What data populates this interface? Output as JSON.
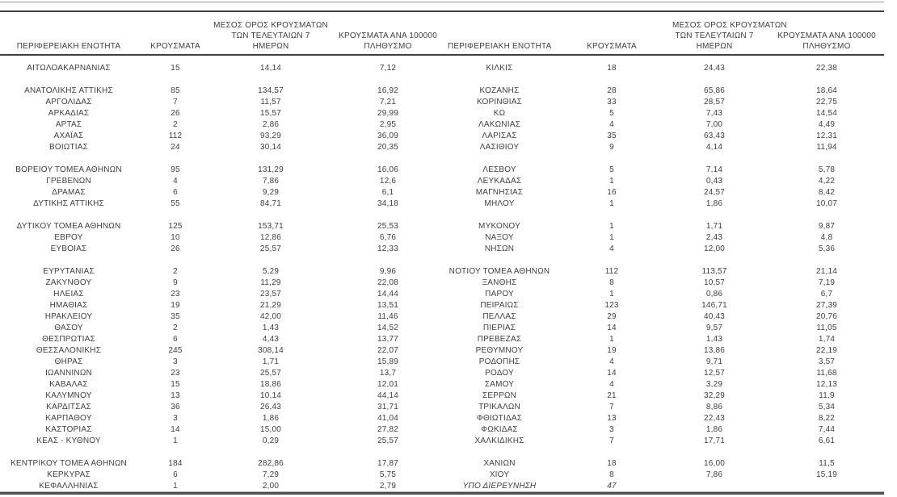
{
  "page": {
    "background": "#ffffff",
    "text_color": "#3f3f3f",
    "rule_color": "#3e3e3e"
  },
  "columns": {
    "region": "ΠΕΡΙΦΕΡΕΙΑΚΗ ΕΝΟΤΗΤΑ",
    "cases": "ΚΡΟΥΣΜΑΤΑ",
    "avg7_line1": "ΜΕΣΟΣ ΟΡΟΣ ΚΡΟΥΣΜΑΤΩΝ",
    "avg7_line2": "ΤΩΝ ΤΕΛΕΥΤΑΙΩΝ 7",
    "avg7_line3": "ΗΜΕΡΩΝ",
    "per100k_line1": "ΚΡΟΥΣΜΑΤΑ ΑΝΑ 100000",
    "per100k_line2": "ΠΛΗΘΥΣΜΟ"
  },
  "left_table": {
    "rows": [
      {
        "region": "ΑΙΤΩΛΟΑΚΑΡΝΑΝΙΑΣ",
        "cases": "15",
        "avg7": "14,14",
        "per100k": "7,12"
      },
      {
        "blank": true
      },
      {
        "region": "ΑΝΑΤΟΛΙΚΗΣ ΑΤΤΙΚΗΣ",
        "cases": "85",
        "avg7": "134,57",
        "per100k": "16,92"
      },
      {
        "region": "ΑΡΓΟΛΙΔΑΣ",
        "cases": "7",
        "avg7": "11,57",
        "per100k": "7,21"
      },
      {
        "region": "ΑΡΚΑΔΙΑΣ",
        "cases": "26",
        "avg7": "15,57",
        "per100k": "29,99"
      },
      {
        "region": "ΑΡΤΑΣ",
        "cases": "2",
        "avg7": "2,86",
        "per100k": "2,95"
      },
      {
        "region": "ΑΧΑΪΑΣ",
        "cases": "112",
        "avg7": "93,29",
        "per100k": "36,09"
      },
      {
        "region": "ΒΟΙΩΤΙΑΣ",
        "cases": "24",
        "avg7": "30,14",
        "per100k": "20,35"
      },
      {
        "blank": true
      },
      {
        "region": "ΒΟΡΕΙΟΥ ΤΟΜΕΑ ΑΘΗΝΩΝ",
        "cases": "95",
        "avg7": "131,29",
        "per100k": "16,06"
      },
      {
        "region": "ΓΡΕΒΕΝΩΝ",
        "cases": "4",
        "avg7": "7,86",
        "per100k": "12,6"
      },
      {
        "region": "ΔΡΑΜΑΣ",
        "cases": "6",
        "avg7": "9,29",
        "per100k": "6,1"
      },
      {
        "region": "ΔΥΤΙΚΗΣ ΑΤΤΙΚΗΣ",
        "cases": "55",
        "avg7": "84,71",
        "per100k": "34,18"
      },
      {
        "blank": true
      },
      {
        "region": "ΔΥΤΙΚΟΥ ΤΟΜΕΑ ΑΘΗΝΩΝ",
        "cases": "125",
        "avg7": "153,71",
        "per100k": "25,53"
      },
      {
        "region": "ΕΒΡΟΥ",
        "cases": "10",
        "avg7": "12,86",
        "per100k": "6,76"
      },
      {
        "region": "ΕΥΒΟΙΑΣ",
        "cases": "26",
        "avg7": "25,57",
        "per100k": "12,33"
      },
      {
        "blank": true
      },
      {
        "region": "ΕΥΡΥΤΑΝΙΑΣ",
        "cases": "2",
        "avg7": "5,29",
        "per100k": "9,96"
      },
      {
        "region": "ΖΑΚΥΝΘΟΥ",
        "cases": "9",
        "avg7": "11,29",
        "per100k": "22,08"
      },
      {
        "region": "ΗΛΕΙΑΣ",
        "cases": "23",
        "avg7": "23,57",
        "per100k": "14,44"
      },
      {
        "region": "ΗΜΑΘΙΑΣ",
        "cases": "19",
        "avg7": "21,29",
        "per100k": "13,51"
      },
      {
        "region": "ΗΡΑΚΛΕΙΟΥ",
        "cases": "35",
        "avg7": "42,00",
        "per100k": "11,46"
      },
      {
        "region": "ΘΑΣΟΥ",
        "cases": "2",
        "avg7": "1,43",
        "per100k": "14,52"
      },
      {
        "region": "ΘΕΣΠΡΩΤΙΑΣ",
        "cases": "6",
        "avg7": "4,43",
        "per100k": "13,77"
      },
      {
        "region": "ΘΕΣΣΑΛΟΝΙΚΗΣ",
        "cases": "245",
        "avg7": "308,14",
        "per100k": "22,07"
      },
      {
        "region": "ΘΗΡΑΣ",
        "cases": "3",
        "avg7": "1,71",
        "per100k": "15,89"
      },
      {
        "region": "ΙΩΑΝΝΙΝΩΝ",
        "cases": "23",
        "avg7": "25,57",
        "per100k": "13,7"
      },
      {
        "region": "ΚΑΒΑΛΑΣ",
        "cases": "15",
        "avg7": "18,86",
        "per100k": "12,01"
      },
      {
        "region": "ΚΑΛΥΜΝΟΥ",
        "cases": "13",
        "avg7": "10,14",
        "per100k": "44,14"
      },
      {
        "region": "ΚΑΡΔΙΤΣΑΣ",
        "cases": "36",
        "avg7": "26,43",
        "per100k": "31,71"
      },
      {
        "region": "ΚΑΡΠΑΘΟΥ",
        "cases": "3",
        "avg7": "1,86",
        "per100k": "41,04"
      },
      {
        "region": "ΚΑΣΤΟΡΙΑΣ",
        "cases": "14",
        "avg7": "15,00",
        "per100k": "27,82"
      },
      {
        "region": "ΚΕΑΣ - ΚΥΘΝΟΥ",
        "cases": "1",
        "avg7": "0,29",
        "per100k": "25,57"
      },
      {
        "blank": true
      },
      {
        "region": "ΚΕΝΤΡΙΚΟΥ ΤΟΜΕΑ ΑΘΗΝΩΝ",
        "cases": "184",
        "avg7": "282,86",
        "per100k": "17,87"
      },
      {
        "region": "ΚΕΡΚΥΡΑΣ",
        "cases": "6",
        "avg7": "7,29",
        "per100k": "5,75"
      },
      {
        "region": "ΚΕΦΑΛΛΗΝΙΑΣ",
        "cases": "1",
        "avg7": "2,00",
        "per100k": "2,79"
      }
    ]
  },
  "right_table": {
    "rows": [
      {
        "region": "ΚΙΛΚΙΣ",
        "cases": "18",
        "avg7": "24,43",
        "per100k": "22,38"
      },
      {
        "blank": true
      },
      {
        "region": "ΚΟΖΑΝΗΣ",
        "cases": "28",
        "avg7": "65,86",
        "per100k": "18,64"
      },
      {
        "region": "ΚΟΡΙΝΘΙΑΣ",
        "cases": "33",
        "avg7": "28,57",
        "per100k": "22,75"
      },
      {
        "region": "ΚΩ",
        "cases": "5",
        "avg7": "7,43",
        "per100k": "14,54"
      },
      {
        "region": "ΛΑΚΩΝΙΑΣ",
        "cases": "4",
        "avg7": "7,00",
        "per100k": "4,49"
      },
      {
        "region": "ΛΑΡΙΣΑΣ",
        "cases": "35",
        "avg7": "63,43",
        "per100k": "12,31"
      },
      {
        "region": "ΛΑΣΙΘΙΟΥ",
        "cases": "9",
        "avg7": "4,14",
        "per100k": "11,94"
      },
      {
        "blank": true
      },
      {
        "region": "ΛΕΣΒΟΥ",
        "cases": "5",
        "avg7": "7,14",
        "per100k": "5,78"
      },
      {
        "region": "ΛΕΥΚΑΔΑΣ",
        "cases": "1",
        "avg7": "0,43",
        "per100k": "4,22"
      },
      {
        "region": "ΜΑΓΝΗΣΙΑΣ",
        "cases": "16",
        "avg7": "24,57",
        "per100k": "8,42"
      },
      {
        "region": "ΜΗΛΟΥ",
        "cases": "1",
        "avg7": "1,86",
        "per100k": "10,07"
      },
      {
        "blank": true
      },
      {
        "region": "ΜΥΚΟΝΟΥ",
        "cases": "1",
        "avg7": "1,71",
        "per100k": "9,87"
      },
      {
        "region": "ΝΑΞΟΥ",
        "cases": "1",
        "avg7": "2,43",
        "per100k": "4,8"
      },
      {
        "region": "ΝΗΣΩΝ",
        "cases": "4",
        "avg7": "12,00",
        "per100k": "5,36"
      },
      {
        "blank": true
      },
      {
        "region": "ΝΟΤΙΟΥ ΤΟΜΕΑ ΑΘΗΝΩΝ",
        "cases": "112",
        "avg7": "113,57",
        "per100k": "21,14"
      },
      {
        "region": "ΞΑΝΘΗΣ",
        "cases": "8",
        "avg7": "10,57",
        "per100k": "7,19"
      },
      {
        "region": "ΠΑΡΟΥ",
        "cases": "1",
        "avg7": "0,86",
        "per100k": "6,7"
      },
      {
        "region": "ΠΕΙΡΑΙΩΣ",
        "cases": "123",
        "avg7": "146,71",
        "per100k": "27,39"
      },
      {
        "region": "ΠΕΛΛΑΣ",
        "cases": "29",
        "avg7": "40,43",
        "per100k": "20,76"
      },
      {
        "region": "ΠΙΕΡΙΑΣ",
        "cases": "14",
        "avg7": "9,57",
        "per100k": "11,05"
      },
      {
        "region": "ΠΡΕΒΕΖΑΣ",
        "cases": "1",
        "avg7": "1,43",
        "per100k": "1,74"
      },
      {
        "region": "ΡΕΘΥΜΝΟΥ",
        "cases": "19",
        "avg7": "13,86",
        "per100k": "22,19"
      },
      {
        "region": "ΡΟΔΟΠΗΣ",
        "cases": "4",
        "avg7": "9,71",
        "per100k": "3,57"
      },
      {
        "region": "ΡΟΔΟΥ",
        "cases": "14",
        "avg7": "12,57",
        "per100k": "11,68"
      },
      {
        "region": "ΣΑΜΟΥ",
        "cases": "4",
        "avg7": "3,29",
        "per100k": "12,13"
      },
      {
        "region": "ΣΕΡΡΩΝ",
        "cases": "21",
        "avg7": "32,29",
        "per100k": "11,9"
      },
      {
        "region": "ΤΡΙΚΑΛΩΝ",
        "cases": "7",
        "avg7": "8,86",
        "per100k": "5,34"
      },
      {
        "region": "ΦΘΙΩΤΙΔΑΣ",
        "cases": "13",
        "avg7": "22,43",
        "per100k": "8,22"
      },
      {
        "region": "ΦΩΚΙΔΑΣ",
        "cases": "3",
        "avg7": "1,86",
        "per100k": "7,44"
      },
      {
        "region": "ΧΑΛΚΙΔΙΚΗΣ",
        "cases": "7",
        "avg7": "17,71",
        "per100k": "6,61"
      },
      {
        "blank": true
      },
      {
        "region": "ΧΑΝΙΩΝ",
        "cases": "18",
        "avg7": "16,00",
        "per100k": "11,5"
      },
      {
        "region": "ΧΙΟΥ",
        "cases": "8",
        "avg7": "7,86",
        "per100k": "15,19"
      },
      {
        "region": "ΥΠΟ ΔΙΕΡΕΥΝΗΣΗ",
        "cases": "47",
        "avg7": "",
        "per100k": "",
        "italic": true
      }
    ]
  }
}
